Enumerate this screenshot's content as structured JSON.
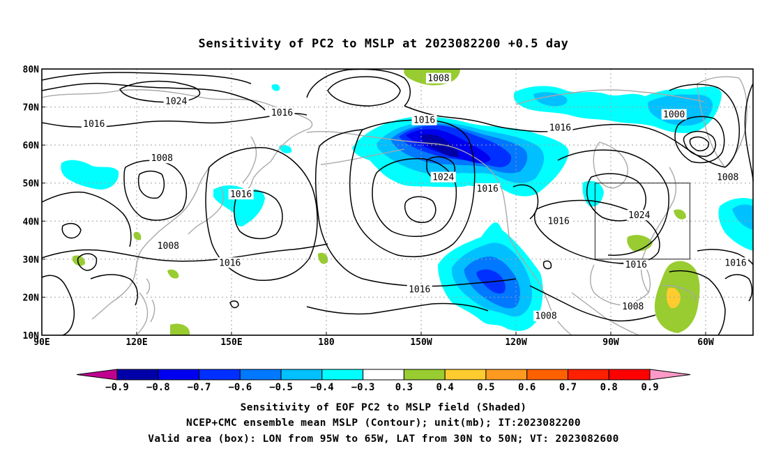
{
  "figure": {
    "title": "Sensitivity of PC2 to MSLP at 2023082200 +0.5 day",
    "captions": [
      "Sensitivity of EOF PC2 to MSLP field (Shaded)",
      "NCEP+CMC ensemble mean MSLP (Contour); unit(mb); IT:2023082200",
      "Valid area (box): LON from 95W to 65W, LAT from 30N to 50N; VT: 2023082600"
    ]
  },
  "map": {
    "lon_range": [
      90,
      315
    ],
    "lat_range": [
      10,
      80
    ],
    "lon_ticks": [
      {
        "lon": 90,
        "label": "90E"
      },
      {
        "lon": 120,
        "label": "120E"
      },
      {
        "lon": 150,
        "label": "150E"
      },
      {
        "lon": 180,
        "label": "180"
      },
      {
        "lon": 210,
        "label": "150W"
      },
      {
        "lon": 240,
        "label": "120W"
      },
      {
        "lon": 270,
        "label": "90W"
      },
      {
        "lon": 300,
        "label": "60W"
      }
    ],
    "lat_ticks": [
      {
        "lat": 10,
        "label": "10N"
      },
      {
        "lat": 20,
        "label": "20N"
      },
      {
        "lat": 30,
        "label": "30N"
      },
      {
        "lat": 40,
        "label": "40N"
      },
      {
        "lat": 50,
        "label": "50N"
      },
      {
        "lat": 60,
        "label": "60N"
      },
      {
        "lat": 70,
        "label": "70N"
      },
      {
        "lat": 80,
        "label": "80N"
      }
    ],
    "grid": "dotted",
    "valid_box": {
      "lon": [
        265,
        295
      ],
      "lat": [
        30,
        50
      ]
    },
    "contour_labels": [
      {
        "lon": 215.5,
        "lat": 77.5,
        "text": "1008"
      },
      {
        "lon": 132.5,
        "lat": 71.5,
        "text": "1024"
      },
      {
        "lon": 166,
        "lat": 68.5,
        "text": "1016"
      },
      {
        "lon": 106.5,
        "lat": 65.5,
        "text": "1016"
      },
      {
        "lon": 128,
        "lat": 56.5,
        "text": "1008"
      },
      {
        "lon": 211,
        "lat": 66.5,
        "text": "1016"
      },
      {
        "lon": 254,
        "lat": 64.5,
        "text": "1016"
      },
      {
        "lon": 290,
        "lat": 68,
        "text": "1000"
      },
      {
        "lon": 307,
        "lat": 51.5,
        "text": "1008"
      },
      {
        "lon": 217,
        "lat": 51.5,
        "text": "1024"
      },
      {
        "lon": 231,
        "lat": 48.5,
        "text": "1016"
      },
      {
        "lon": 153,
        "lat": 47,
        "text": "1016"
      },
      {
        "lon": 130,
        "lat": 33.5,
        "text": "1008"
      },
      {
        "lon": 149.5,
        "lat": 29,
        "text": "1016"
      },
      {
        "lon": 209.5,
        "lat": 22,
        "text": "1016"
      },
      {
        "lon": 253.5,
        "lat": 40,
        "text": "1016"
      },
      {
        "lon": 279,
        "lat": 41.5,
        "text": "1024"
      },
      {
        "lon": 278,
        "lat": 28.5,
        "text": "1016"
      },
      {
        "lon": 309.5,
        "lat": 29,
        "text": "1016"
      },
      {
        "lon": 249.5,
        "lat": 15,
        "text": "1008"
      },
      {
        "lon": 277,
        "lat": 17.5,
        "text": "1008"
      }
    ]
  },
  "colorbar": {
    "ticks": [
      "-0.9",
      "-0.8",
      "-0.7",
      "-0.6",
      "-0.5",
      "-0.4",
      "-0.3",
      "0.3",
      "0.4",
      "0.5",
      "0.6",
      "0.7",
      "0.8",
      "0.9"
    ],
    "colors": {
      "below": "#c00090",
      "bins": [
        "#0000a8",
        "#0000f0",
        "#0030ff",
        "#0078ff",
        "#00c0ff",
        "#00ffff",
        "#ffffff",
        "#98cc30",
        "#ffcc30",
        "#ff9a20",
        "#ff6000",
        "#ff2000",
        "#ff0000"
      ],
      "above": "#ff9ac8"
    }
  },
  "colors": {
    "contour": "#000000",
    "coastline": "#a8a8a8",
    "grid": "#a0a0a0"
  }
}
